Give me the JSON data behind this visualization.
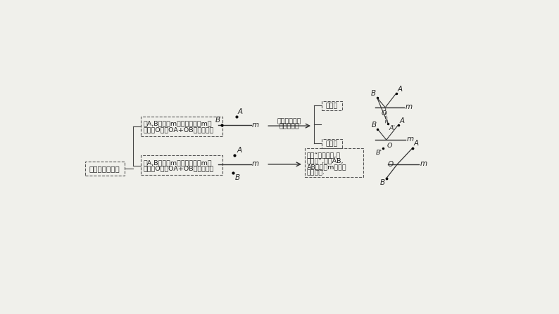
{
  "bg_color": "#f0f0eb",
  "box1_text": "线段和最小问题",
  "box2_line1": "点A,B在直线m异侧，在直线m上",
  "box2_line2": "找一点O，使OA+OB的値最小。",
  "box3_line1": "点A,B在直线m同侧，在直线m上",
  "box3_line2": "找一点O，使OA+OB的値最小。",
  "box4_line1": "根据“两点之间,线",
  "box4_line2": "段最短”,连接AB,",
  "box4_line3": "AB与直线m的交点",
  "box4_line4": "即为所求.",
  "arrow_text1": "根据轴对称，",
  "arrow_text2": "同侧变异侧",
  "label_jin": "近点法",
  "label_yuan": "远点法"
}
